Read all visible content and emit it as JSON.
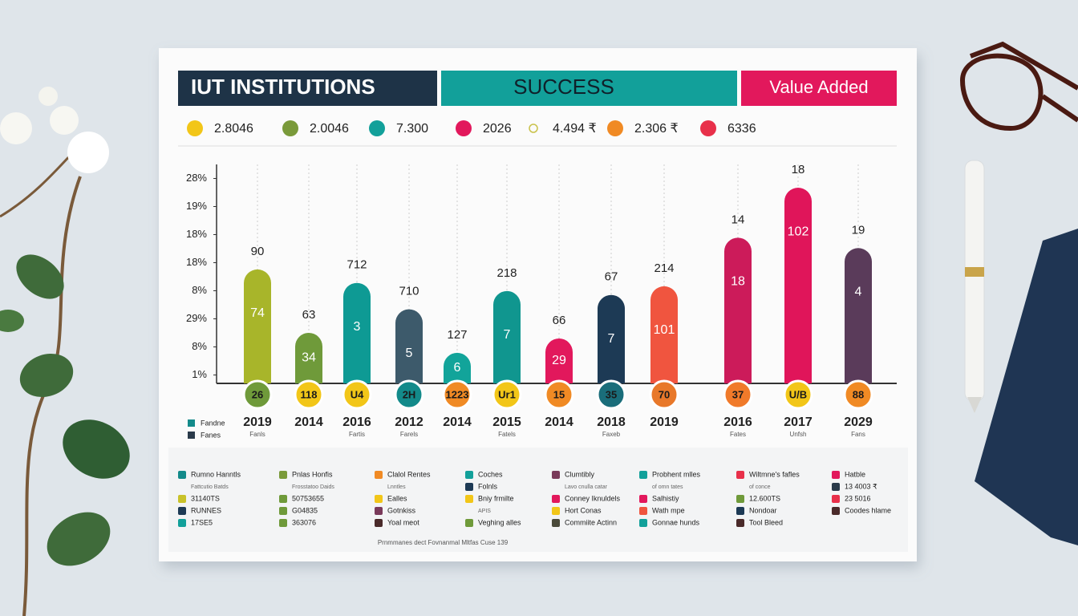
{
  "header": {
    "title": "IUT INSTITUTIONS",
    "success": "SUCCESS",
    "value_added": "Value Added"
  },
  "key": [
    {
      "label": "2.8046",
      "color": "#f2c618"
    },
    {
      "label": "2.0046",
      "color": "#7a9a3a"
    },
    {
      "label": "7.300",
      "color": "#12a09a"
    },
    {
      "label": "2026",
      "color": "#e2185c"
    },
    {
      "label": "4.494 ₹",
      "color": "#c9c24a"
    },
    {
      "label": "2.306 ₹",
      "color": "#f08a24"
    },
    {
      "label": "6336",
      "color": "#e8304a"
    }
  ],
  "chart_data": {
    "type": "bar",
    "ylim": [
      0.7,
      8.5
    ],
    "yticks": [
      {
        "value": 8,
        "label": "28%"
      },
      {
        "value": 7,
        "label": "19%"
      },
      {
        "value": 6,
        "label": "18%"
      },
      {
        "value": 5,
        "label": "18%"
      },
      {
        "value": 4,
        "label": "8%"
      },
      {
        "value": 3,
        "label": "29%"
      },
      {
        "value": 2,
        "label": "8%"
      },
      {
        "value": 1,
        "label": "1%"
      }
    ],
    "categories": [
      "2019",
      "2014",
      "2016",
      "2012",
      "2014",
      "2015",
      "2014",
      "2018",
      "2019",
      "2016",
      "2017",
      "2029"
    ],
    "sublabels": [
      "Fanls",
      null,
      "Fartis",
      "Farels",
      null,
      "Fatels",
      null,
      "Faxeb",
      null,
      "Fates",
      "Unfsh",
      "Fans"
    ],
    "values": [
      4.76,
      2.5,
      4.28,
      3.34,
      1.79,
      3.99,
      2.3,
      3.85,
      4.16,
      5.89,
      7.67,
      5.52
    ],
    "colors": [
      "#a8b52a",
      "#6f9a3a",
      "#0e9a94",
      "#3d5a6b",
      "#12a49a",
      "#10968f",
      "#e2185c",
      "#1d3a55",
      "#f0553f",
      "#cc1b5a",
      "#e0155a",
      "#5a3b5a"
    ],
    "top_labels": [
      "90",
      "63",
      "712",
      "710",
      "127",
      "218",
      "66",
      "67",
      "214",
      "14",
      "18",
      "19"
    ],
    "inner_labels": [
      "74",
      "34",
      "3",
      "5",
      "6",
      "7",
      "29",
      "7",
      "101",
      "18",
      "102",
      "4"
    ],
    "badge_labels": [
      "26",
      "118",
      "U4",
      "2H",
      "1223",
      "Ur1",
      "15",
      "35",
      "70",
      "37",
      "U/B",
      "88"
    ],
    "badge_colors": [
      "#6f9a3a",
      "#f2c618",
      "#f2c618",
      "#138a8a",
      "#f08a24",
      "#f2c618",
      "#f08a24",
      "#1a6d7a",
      "#e8782a",
      "#f07a2a",
      "#f2c618",
      "#f08a24"
    ]
  },
  "side_legend": [
    {
      "label": "Fandne",
      "color": "#138a8a"
    },
    {
      "label": "Fanes",
      "color": "#2a3a4a"
    }
  ],
  "legend": {
    "columns": [
      [
        {
          "label": "Rumno Hanntls",
          "color": "#138a8a"
        },
        {
          "label": "Fattcutio Batds",
          "color": null
        },
        {
          "label": "31140TS",
          "color": "#c9c22a"
        },
        {
          "label": "RUNNES",
          "color": "#1d3a55"
        },
        {
          "label": "17SE5",
          "color": "#12a09a"
        }
      ],
      [
        {
          "label": "Pnlas Honfis",
          "color": "#7a9a3a"
        },
        {
          "label": "Frosstatoo Daids",
          "color": null
        },
        {
          "label": "50753655",
          "color": "#6f9a3a"
        },
        {
          "label": "G04835",
          "color": "#6f9a3a"
        },
        {
          "label": "363076",
          "color": "#6f9a3a"
        }
      ],
      [
        {
          "label": "Clalol Rentes",
          "color": "#f08a24"
        },
        {
          "label": "Lnntles",
          "color": null
        },
        {
          "label": "Ealles",
          "color": "#f2c618"
        },
        {
          "label": "Gotnkiss",
          "color": "#7a3a5a"
        },
        {
          "label": "Yoal meot",
          "color": "#4a2a2a"
        }
      ],
      [
        {
          "label": "Coches",
          "color": "#12a09a"
        },
        {
          "label": "Folnls",
          "color": "#1d3a55"
        },
        {
          "label": "Bniy frmilte",
          "color": "#f2c618"
        },
        {
          "label": "APIS",
          "color": null
        },
        {
          "label": "Veghing alles",
          "color": "#6f9a3a"
        }
      ],
      [
        {
          "label": "Clumtibly",
          "color": "#7a3a5a"
        },
        {
          "label": "Lavo cnulla catar",
          "color": null
        },
        {
          "label": "Conney Iknuldels",
          "color": "#e2185c"
        },
        {
          "label": "Hort Conas",
          "color": "#f2c618"
        },
        {
          "label": "Commiite Actinn",
          "color": "#4a4a3a"
        }
      ],
      [
        {
          "label": "Probhent mlles",
          "color": "#12a09a"
        },
        {
          "label": "of omn tates",
          "color": null
        },
        {
          "label": "Salhistiy",
          "color": "#e2185c"
        },
        {
          "label": "Wath mpe",
          "color": "#f0553f"
        },
        {
          "label": "Gonnae hunds",
          "color": "#12a09a"
        }
      ],
      [
        {
          "label": "Wiltmne's fafles",
          "color": "#e8304a"
        },
        {
          "label": "of conce",
          "color": null
        },
        {
          "label": "12.600TS",
          "color": "#6f9a3a"
        },
        {
          "label": "Nondoar",
          "color": "#1d3a55"
        },
        {
          "label": "Tool Bleed",
          "color": "#4a2a2a"
        }
      ],
      [
        {
          "label": "Hatble",
          "color": "#e2185c"
        },
        {
          "label": "13 4003 ₹",
          "color": "#2a3a4a"
        },
        {
          "label": "23 5016",
          "color": "#e8304a"
        },
        {
          "label": "Coodes hlame",
          "color": "#4a2a2a"
        }
      ]
    ]
  },
  "footer": "Prnmmanes dect Fovnanmal Mltfas Cuse 139"
}
